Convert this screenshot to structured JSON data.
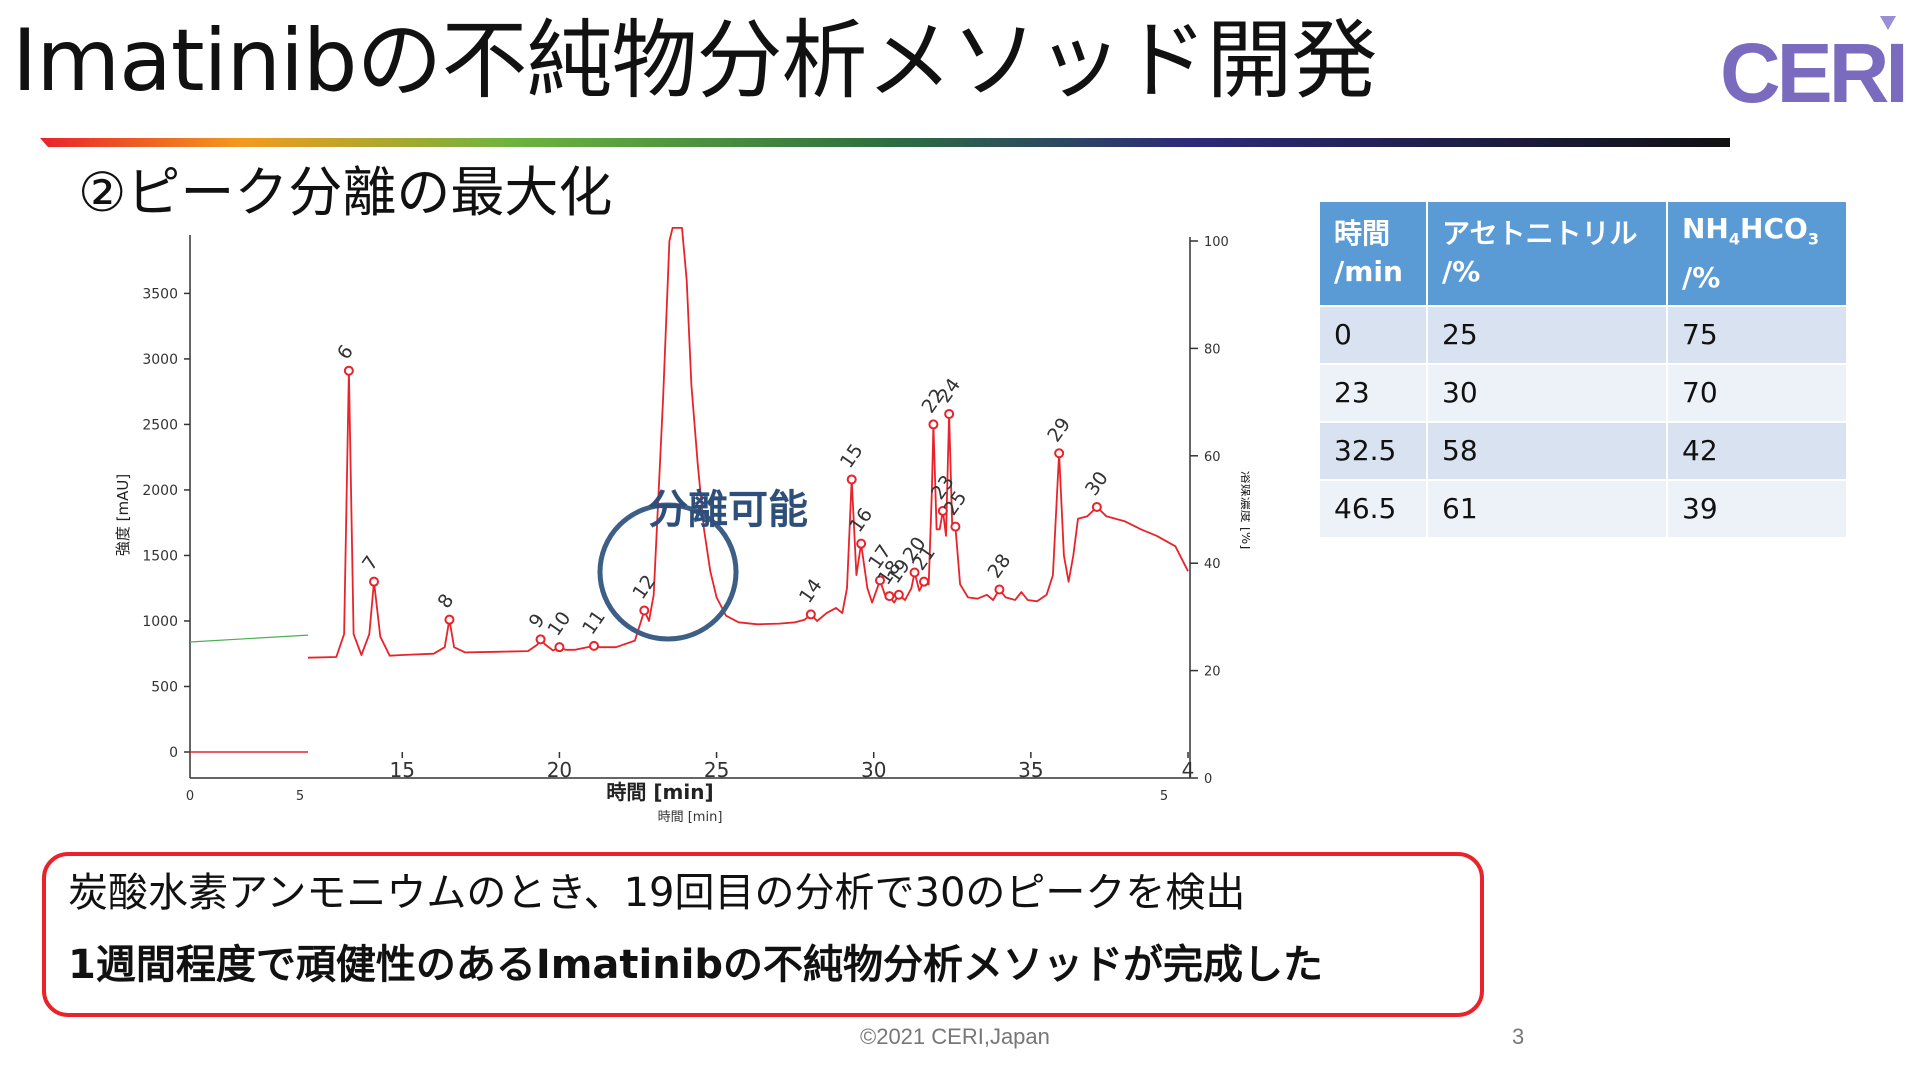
{
  "slide": {
    "title": "Imatinibの不純物分析メソッド開発",
    "logo_text": "CERI",
    "subtitle": "②ピーク分離の最大化",
    "callout": "分離可能",
    "result_line1": "炭酸水素アンモニウムのとき、19回目の分析で30のピークを検出",
    "result_line2": "1週間程度で頑健性のあるImatinibの不純物分析メソッドが完成した",
    "footer": "©2021 CERI,Japan",
    "page_number": "3",
    "colors": {
      "trace": "#e8232a",
      "accent_blue": "#5b9bd5",
      "callout_blue": "#2e4f7a",
      "logo_purple": "#7a6bbf"
    }
  },
  "gradient_table": {
    "headers": [
      "時間\n/min",
      "アセトニトリル\n/%",
      "NH4HCO3\n/%"
    ],
    "rows": [
      [
        "0",
        "25",
        "75"
      ],
      [
        "23",
        "30",
        "70"
      ],
      [
        "32.5",
        "58",
        "42"
      ],
      [
        "46.5",
        "61",
        "39"
      ]
    ]
  },
  "chart_data": {
    "type": "line",
    "title": "",
    "xlabel": "時間 [min]",
    "ylabel": "強度 [mAU]",
    "y2label": "溶媒濃度 [%]",
    "xlim": [
      12,
      40
    ],
    "ylim": [
      0,
      3900
    ],
    "y2lim": [
      0,
      100
    ],
    "x_ticks": [
      "15",
      "20",
      "25",
      "30",
      "35",
      "4"
    ],
    "y_ticks": [
      "0",
      "500",
      "1000",
      "1500",
      "2000",
      "2500",
      "3000",
      "3500"
    ],
    "y2_ticks": [
      "0",
      "20",
      "40",
      "60",
      "80",
      "100"
    ],
    "background_axis_ticks": [
      "0",
      "5",
      "5"
    ],
    "background_xlabel": "時間 [min]",
    "baseline": 720,
    "main_peak": {
      "x": 23.9,
      "label": ""
    },
    "peaks": [
      {
        "label": "6",
        "x": 13.3,
        "y": 2910
      },
      {
        "label": "7",
        "x": 14.1,
        "y": 1300
      },
      {
        "label": "8",
        "x": 16.5,
        "y": 1010
      },
      {
        "label": "9",
        "x": 19.4,
        "y": 860
      },
      {
        "label": "10",
        "x": 20.0,
        "y": 800
      },
      {
        "label": "11",
        "x": 21.1,
        "y": 810
      },
      {
        "label": "12",
        "x": 22.7,
        "y": 1080
      },
      {
        "label": "14",
        "x": 28.0,
        "y": 1050
      },
      {
        "label": "15",
        "x": 29.3,
        "y": 2080
      },
      {
        "label": "16",
        "x": 29.6,
        "y": 1590
      },
      {
        "label": "17",
        "x": 30.2,
        "y": 1310
      },
      {
        "label": "18",
        "x": 30.5,
        "y": 1190
      },
      {
        "label": "19",
        "x": 30.8,
        "y": 1200
      },
      {
        "label": "20",
        "x": 31.3,
        "y": 1370
      },
      {
        "label": "21",
        "x": 31.6,
        "y": 1300
      },
      {
        "label": "22",
        "x": 31.9,
        "y": 2500
      },
      {
        "label": "23",
        "x": 32.2,
        "y": 1840
      },
      {
        "label": "24",
        "x": 32.4,
        "y": 2580
      },
      {
        "label": "25",
        "x": 32.6,
        "y": 1720
      },
      {
        "label": "28",
        "x": 34.0,
        "y": 1240
      },
      {
        "label": "29",
        "x": 35.9,
        "y": 2280
      },
      {
        "label": "30",
        "x": 37.1,
        "y": 1870
      }
    ],
    "trace": [
      [
        12,
        720
      ],
      [
        12.9,
        725
      ],
      [
        13.15,
        900
      ],
      [
        13.3,
        2910
      ],
      [
        13.45,
        900
      ],
      [
        13.7,
        740
      ],
      [
        13.95,
        900
      ],
      [
        14.1,
        1300
      ],
      [
        14.3,
        880
      ],
      [
        14.6,
        735
      ],
      [
        15,
        740
      ],
      [
        16,
        750
      ],
      [
        16.35,
        800
      ],
      [
        16.5,
        1010
      ],
      [
        16.65,
        800
      ],
      [
        17,
        760
      ],
      [
        18,
        765
      ],
      [
        19,
        770
      ],
      [
        19.3,
        820
      ],
      [
        19.4,
        860
      ],
      [
        19.55,
        820
      ],
      [
        19.8,
        775
      ],
      [
        20,
        800
      ],
      [
        20.2,
        780
      ],
      [
        20.5,
        780
      ],
      [
        21.1,
        810
      ],
      [
        21.3,
        800
      ],
      [
        21.8,
        800
      ],
      [
        22.4,
        850
      ],
      [
        22.6,
        1000
      ],
      [
        22.7,
        1080
      ],
      [
        22.85,
        1000
      ],
      [
        23.0,
        1200
      ],
      [
        23.3,
        2700
      ],
      [
        23.5,
        3900
      ],
      [
        23.6,
        4000
      ],
      [
        23.9,
        4000
      ],
      [
        24.05,
        3600
      ],
      [
        24.2,
        2800
      ],
      [
        24.4,
        2200
      ],
      [
        24.6,
        1700
      ],
      [
        24.8,
        1380
      ],
      [
        25.0,
        1180
      ],
      [
        25.3,
        1040
      ],
      [
        25.7,
        990
      ],
      [
        26.3,
        975
      ],
      [
        27,
        980
      ],
      [
        27.5,
        990
      ],
      [
        27.8,
        1010
      ],
      [
        28.0,
        1050
      ],
      [
        28.2,
        1000
      ],
      [
        28.5,
        1060
      ],
      [
        28.8,
        1100
      ],
      [
        29.0,
        1060
      ],
      [
        29.15,
        1250
      ],
      [
        29.3,
        2080
      ],
      [
        29.45,
        1350
      ],
      [
        29.6,
        1590
      ],
      [
        29.8,
        1250
      ],
      [
        29.95,
        1140
      ],
      [
        30.2,
        1310
      ],
      [
        30.4,
        1170
      ],
      [
        30.5,
        1190
      ],
      [
        30.65,
        1140
      ],
      [
        30.8,
        1200
      ],
      [
        31.0,
        1160
      ],
      [
        31.2,
        1250
      ],
      [
        31.3,
        1370
      ],
      [
        31.45,
        1230
      ],
      [
        31.6,
        1300
      ],
      [
        31.75,
        1280
      ],
      [
        31.85,
        2000
      ],
      [
        31.9,
        2500
      ],
      [
        32.0,
        1700
      ],
      [
        32.1,
        1700
      ],
      [
        32.2,
        1840
      ],
      [
        32.3,
        1650
      ],
      [
        32.4,
        2580
      ],
      [
        32.5,
        1700
      ],
      [
        32.6,
        1720
      ],
      [
        32.75,
        1280
      ],
      [
        33.0,
        1180
      ],
      [
        33.3,
        1170
      ],
      [
        33.6,
        1200
      ],
      [
        33.8,
        1160
      ],
      [
        34.0,
        1240
      ],
      [
        34.2,
        1180
      ],
      [
        34.5,
        1160
      ],
      [
        34.7,
        1220
      ],
      [
        34.9,
        1160
      ],
      [
        35.2,
        1150
      ],
      [
        35.5,
        1200
      ],
      [
        35.7,
        1350
      ],
      [
        35.9,
        2280
      ],
      [
        36.05,
        1500
      ],
      [
        36.2,
        1300
      ],
      [
        36.35,
        1500
      ],
      [
        36.5,
        1780
      ],
      [
        36.8,
        1800
      ],
      [
        37.1,
        1870
      ],
      [
        37.4,
        1800
      ],
      [
        38.0,
        1760
      ],
      [
        38.5,
        1700
      ],
      [
        39.0,
        1650
      ],
      [
        39.6,
        1570
      ],
      [
        40.0,
        1380
      ]
    ]
  }
}
